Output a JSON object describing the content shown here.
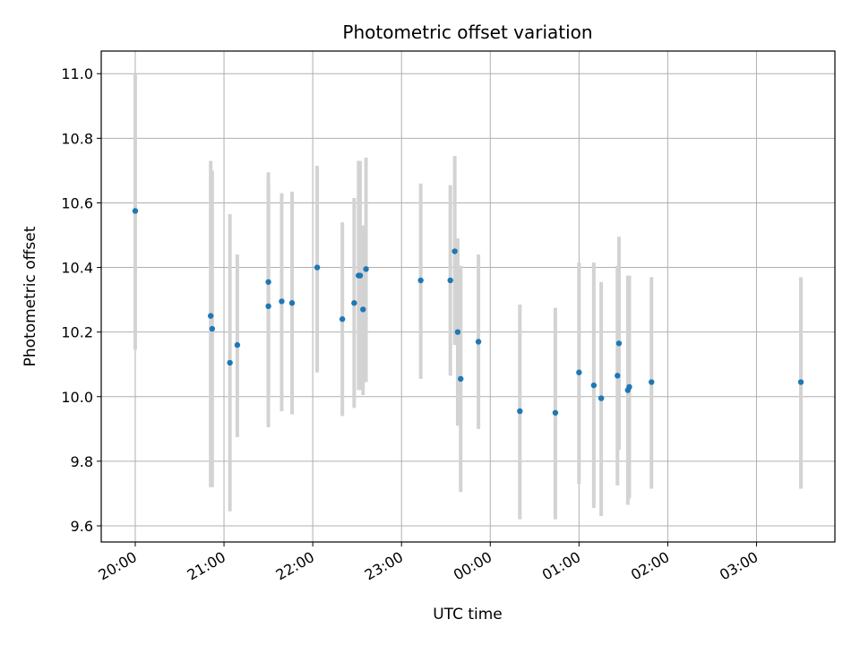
{
  "chart_data": {
    "type": "scatter",
    "title": "Photometric offset variation",
    "xlabel": "UTC time",
    "ylabel": "Photometric offset",
    "x_is_time": true,
    "xlim": [
      "19:37",
      "03:53"
    ],
    "ylim": [
      9.55,
      11.07
    ],
    "x_ticks": [
      "20:00",
      "21:00",
      "22:00",
      "23:00",
      "00:00",
      "01:00",
      "02:00",
      "03:00"
    ],
    "y_ticks": [
      "9.6",
      "9.8",
      "10.0",
      "10.2",
      "10.4",
      "10.6",
      "10.8",
      "11.0"
    ],
    "grid": true,
    "colors": {
      "marker": "#1f77b4",
      "error_bar": "#d3d3d3",
      "grid": "#b0b0b0",
      "axis": "#000000"
    },
    "series": [
      {
        "x": [
          "20:00",
          "20:51",
          "20:52",
          "21:04",
          "21:09",
          "21:30",
          "21:30",
          "21:39",
          "21:46",
          "22:03",
          "22:20",
          "22:28",
          "22:31",
          "22:32",
          "22:34",
          "22:36",
          "23:13",
          "23:33",
          "23:36",
          "23:38",
          "23:40",
          "23:52",
          "00:20",
          "00:44",
          "01:00",
          "01:10",
          "01:15",
          "01:26",
          "01:27",
          "01:33",
          "01:34",
          "01:49",
          "03:30"
        ],
        "y": [
          10.575,
          10.25,
          10.21,
          10.105,
          10.16,
          10.28,
          10.355,
          10.295,
          10.29,
          10.4,
          10.24,
          10.29,
          10.375,
          10.375,
          10.27,
          10.395,
          10.36,
          10.36,
          10.45,
          10.2,
          10.055,
          10.17,
          9.955,
          9.95,
          10.075,
          10.035,
          9.995,
          10.065,
          10.165,
          10.02,
          10.03,
          10.045,
          10.045
        ],
        "y_low": [
          10.145,
          9.72,
          9.72,
          9.645,
          9.875,
          9.905,
          10.01,
          9.955,
          9.945,
          10.075,
          9.94,
          9.965,
          10.02,
          10.02,
          10.005,
          10.045,
          10.055,
          10.065,
          10.16,
          9.91,
          9.705,
          9.9,
          9.62,
          9.62,
          9.73,
          9.655,
          9.63,
          9.725,
          9.835,
          9.665,
          9.685,
          9.715,
          9.715
        ],
        "y_high": [
          11.0,
          10.73,
          10.7,
          10.565,
          10.44,
          10.655,
          10.695,
          10.63,
          10.635,
          10.715,
          10.54,
          10.615,
          10.73,
          10.73,
          10.53,
          10.74,
          10.66,
          10.655,
          10.745,
          10.49,
          10.405,
          10.44,
          10.285,
          10.275,
          10.415,
          10.415,
          10.355,
          10.405,
          10.495,
          10.375,
          10.375,
          10.37,
          10.37
        ]
      }
    ]
  }
}
